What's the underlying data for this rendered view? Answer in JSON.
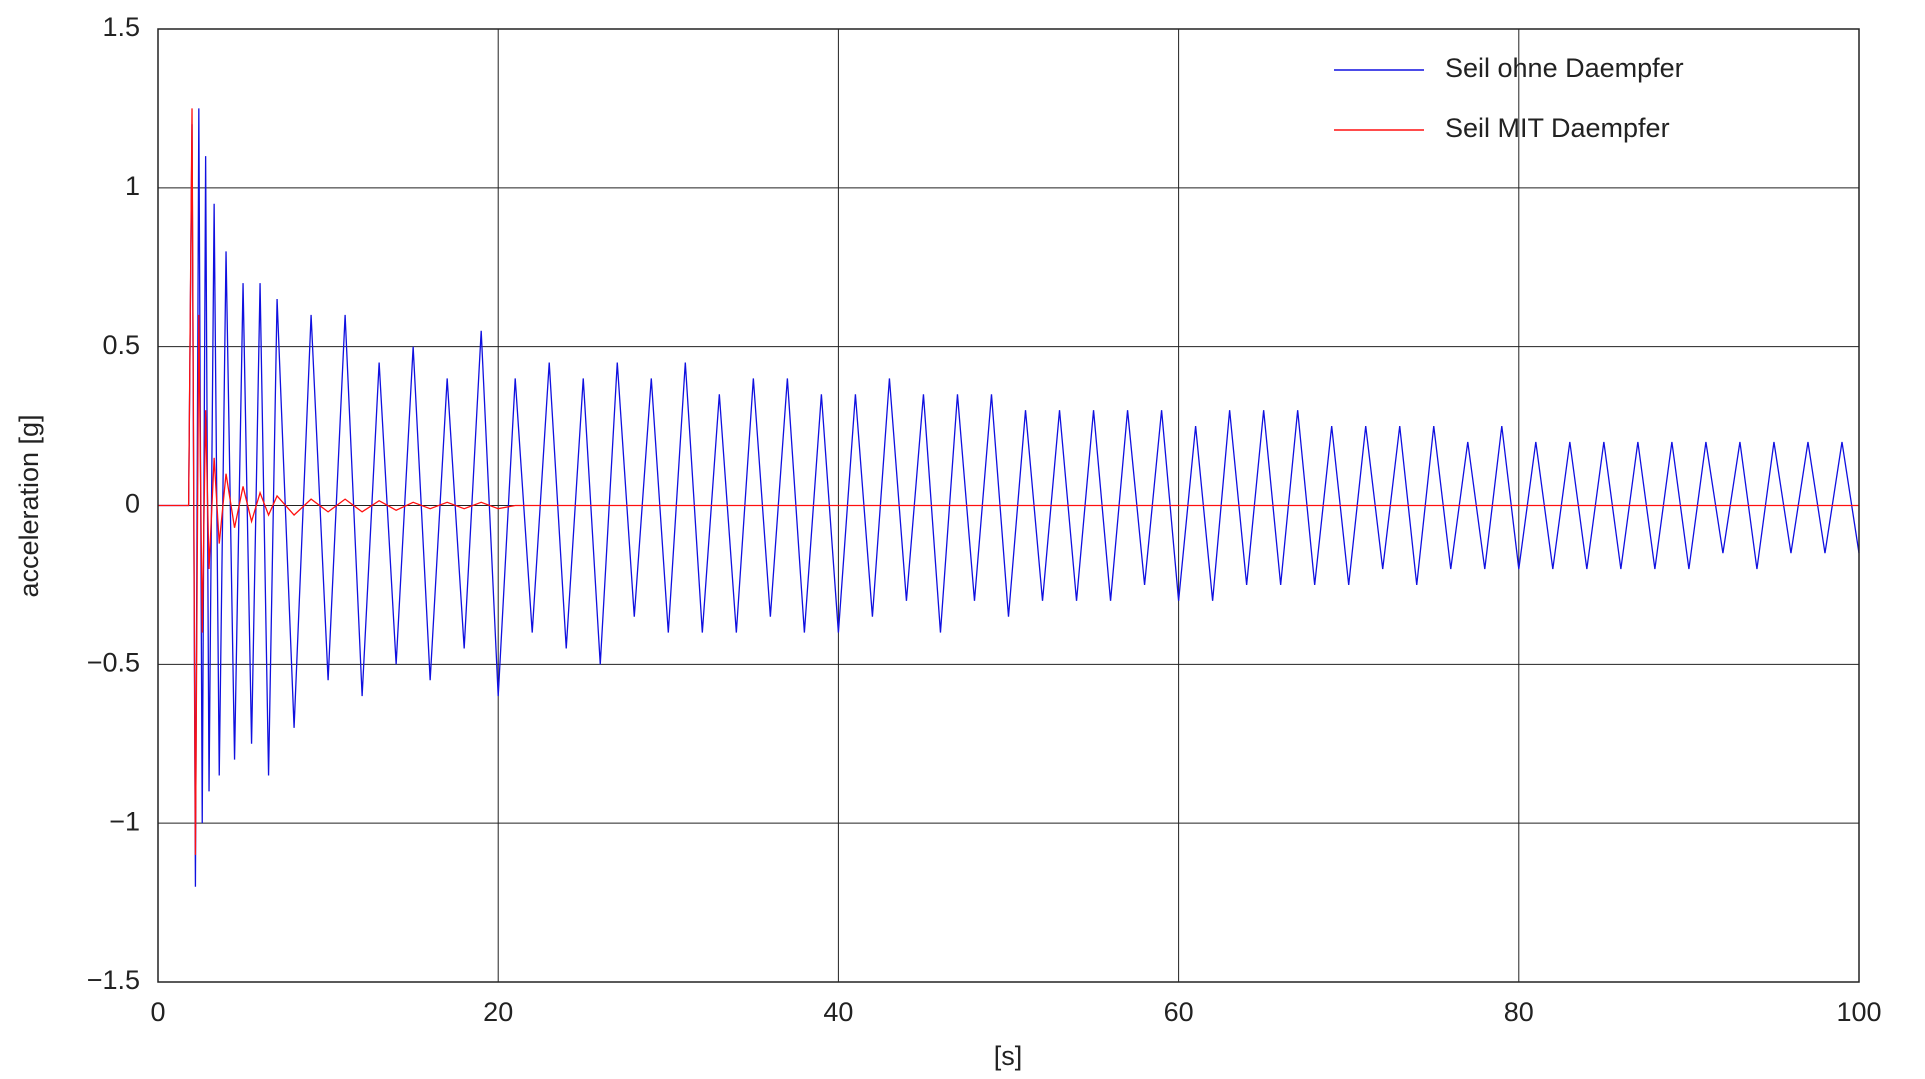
{
  "chart_data": {
    "type": "line",
    "x_label": "[s]",
    "y_label": "acceleration [g]",
    "x": [
      0,
      1,
      1.8,
      2,
      2.2,
      2.4,
      2.6,
      2.8,
      3,
      3.3,
      3.6,
      4,
      4.5,
      5,
      5.5,
      6,
      6.5,
      7,
      8,
      9,
      10,
      11,
      12,
      13,
      14,
      15,
      16,
      17,
      18,
      19,
      20,
      21,
      22,
      23,
      24,
      25,
      26,
      27,
      28,
      29,
      30,
      31,
      32,
      33,
      34,
      35,
      36,
      37,
      38,
      39,
      40,
      41,
      42,
      43,
      44,
      45,
      46,
      47,
      48,
      49,
      50,
      51,
      52,
      53,
      54,
      55,
      56,
      57,
      58,
      59,
      60,
      61,
      62,
      63,
      64,
      65,
      66,
      67,
      68,
      69,
      70,
      71,
      72,
      73,
      74,
      75,
      76,
      77,
      78,
      79,
      80,
      81,
      82,
      83,
      84,
      85,
      86,
      87,
      88,
      89,
      90,
      91,
      92,
      93,
      94,
      95,
      96,
      97,
      98,
      99,
      100
    ],
    "series": [
      {
        "name": "Seil ohne Daempfer",
        "color": "#1010e0",
        "values": [
          0,
          0,
          0,
          1.2,
          -1.2,
          1.25,
          -1.0,
          1.1,
          -0.9,
          0.95,
          -0.85,
          0.8,
          -0.8,
          0.7,
          -0.75,
          0.7,
          -0.85,
          0.65,
          -0.7,
          0.6,
          -0.55,
          0.6,
          -0.6,
          0.45,
          -0.5,
          0.5,
          -0.55,
          0.4,
          -0.45,
          0.55,
          -0.6,
          0.4,
          -0.4,
          0.45,
          -0.45,
          0.4,
          -0.5,
          0.45,
          -0.35,
          0.4,
          -0.4,
          0.45,
          -0.4,
          0.35,
          -0.4,
          0.4,
          -0.35,
          0.4,
          -0.4,
          0.35,
          -0.4,
          0.35,
          -0.35,
          0.4,
          -0.3,
          0.35,
          -0.4,
          0.35,
          -0.3,
          0.35,
          -0.35,
          0.3,
          -0.3,
          0.3,
          -0.3,
          0.3,
          -0.3,
          0.3,
          -0.25,
          0.3,
          -0.3,
          0.25,
          -0.3,
          0.3,
          -0.25,
          0.3,
          -0.25,
          0.3,
          -0.25,
          0.25,
          -0.25,
          0.25,
          -0.2,
          0.25,
          -0.25,
          0.25,
          -0.2,
          0.2,
          -0.2,
          0.25,
          -0.2,
          0.2,
          -0.2,
          0.2,
          -0.2,
          0.2,
          -0.2,
          0.2,
          -0.2,
          0.2,
          -0.2,
          0.2,
          -0.15,
          0.2,
          -0.2,
          0.2,
          -0.15,
          0.2,
          -0.15,
          0.2,
          -0.15
        ]
      },
      {
        "name": "Seil MIT Daempfer",
        "color": "#ff1010",
        "values": [
          0,
          0,
          0,
          1.25,
          -1.1,
          0.6,
          -0.4,
          0.3,
          -0.2,
          0.15,
          -0.12,
          0.1,
          -0.07,
          0.06,
          -0.05,
          0.04,
          -0.03,
          0.03,
          -0.03,
          0.02,
          -0.02,
          0.02,
          -0.02,
          0.015,
          -0.015,
          0.01,
          -0.01,
          0.01,
          -0.01,
          0.01,
          -0.01,
          0,
          0,
          0,
          0,
          0,
          0,
          0,
          0,
          0,
          0,
          0,
          0,
          0,
          0,
          0,
          0,
          0,
          0,
          0,
          0,
          0,
          0,
          0,
          0,
          0,
          0,
          0,
          0,
          0,
          0,
          0,
          0,
          0,
          0,
          0,
          0,
          0,
          0,
          0,
          0,
          0,
          0,
          0,
          0,
          0,
          0,
          0,
          0,
          0,
          0,
          0,
          0,
          0,
          0,
          0,
          0,
          0,
          0,
          0,
          0,
          0,
          0,
          0,
          0,
          0,
          0,
          0,
          0,
          0,
          0,
          0,
          0,
          0,
          0,
          0,
          0,
          0,
          0,
          0,
          0
        ]
      }
    ],
    "xlim": [
      0,
      100
    ],
    "xticks": [
      0,
      20,
      40,
      60,
      80,
      100
    ],
    "ylim": [
      -1.5,
      1.5
    ],
    "yticks": [
      {
        "value": -1.5,
        "label": "−1.5"
      },
      {
        "value": -1,
        "label": "−1"
      },
      {
        "value": -0.5,
        "label": "−0.5"
      },
      0,
      0.5,
      1,
      1.5
    ],
    "grid": true,
    "legend": "upper right"
  }
}
